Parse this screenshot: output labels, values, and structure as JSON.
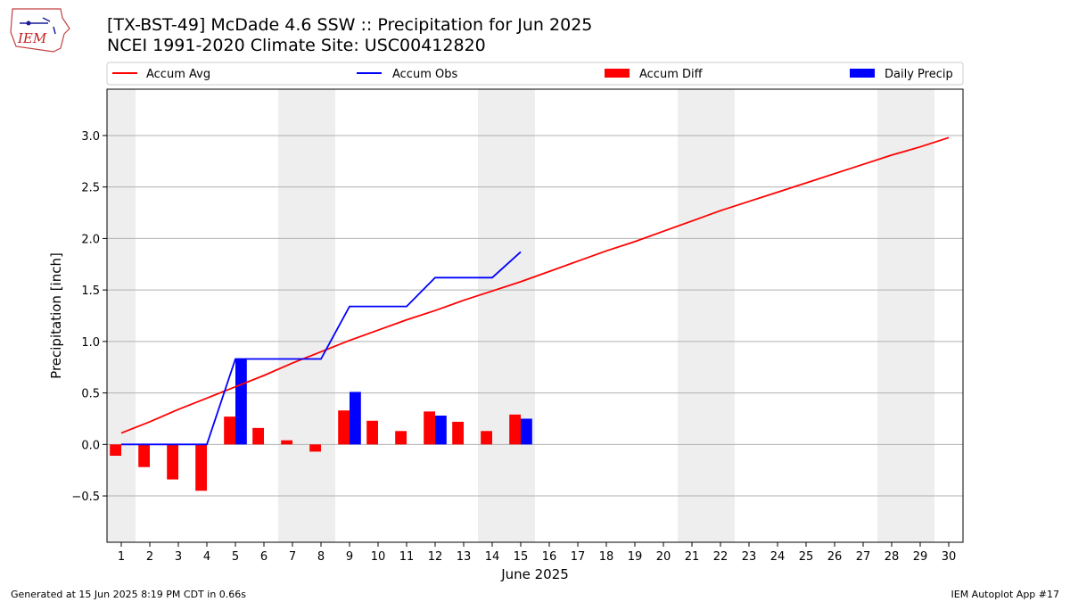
{
  "header": {
    "title_line1": "[TX-BST-49] McDade 4.6 SSW :: Precipitation for Jun 2025",
    "title_line2": "NCEI 1991-2020 Climate Site: USC00412820",
    "logo_text": "IEM"
  },
  "footer": {
    "left": "Generated at 15 Jun 2025 8:19 PM CDT in 0.66s",
    "right": "IEM Autoplot App #17"
  },
  "colors": {
    "avg": "#ff0000",
    "obs": "#0000ff",
    "diff": "#ff0000",
    "daily": "#0000ff",
    "weekend_shade": "#eeeeee",
    "grid": "#b0b0b0"
  },
  "chart_data": {
    "type": "bar+line",
    "xlabel": "June 2025",
    "ylabel": "Precipitation [inch]",
    "xlim": [
      0.5,
      30.5
    ],
    "ylim": [
      -0.95,
      3.45
    ],
    "yticks": [
      -0.5,
      0.0,
      0.5,
      1.0,
      1.5,
      2.0,
      2.5,
      3.0
    ],
    "ytick_labels": [
      "−0.5",
      "0.0",
      "0.5",
      "1.0",
      "1.5",
      "2.0",
      "2.5",
      "3.0"
    ],
    "days": [
      1,
      2,
      3,
      4,
      5,
      6,
      7,
      8,
      9,
      10,
      11,
      12,
      13,
      14,
      15,
      16,
      17,
      18,
      19,
      20,
      21,
      22,
      23,
      24,
      25,
      26,
      27,
      28,
      29,
      30
    ],
    "weekend_days": [
      1,
      7,
      8,
      14,
      15,
      21,
      22,
      28,
      29
    ],
    "grid": "y",
    "legend": {
      "placement": "top",
      "entries": [
        "Accum Avg",
        "Accum Obs",
        "Accum Diff",
        "Daily Precip"
      ]
    },
    "series": [
      {
        "name": "Accum Avg",
        "kind": "line",
        "x": [
          1,
          2,
          3,
          4,
          5,
          6,
          7,
          8,
          9,
          10,
          11,
          12,
          13,
          14,
          15,
          16,
          17,
          18,
          19,
          20,
          21,
          22,
          23,
          24,
          25,
          26,
          27,
          28,
          29,
          30
        ],
        "values": [
          0.11,
          0.22,
          0.34,
          0.45,
          0.56,
          0.67,
          0.79,
          0.9,
          1.01,
          1.11,
          1.21,
          1.3,
          1.4,
          1.49,
          1.58,
          1.68,
          1.78,
          1.88,
          1.97,
          2.07,
          2.17,
          2.27,
          2.36,
          2.45,
          2.54,
          2.63,
          2.72,
          2.81,
          2.89,
          2.98
        ]
      },
      {
        "name": "Accum Obs",
        "kind": "line",
        "x": [
          1,
          2,
          3,
          4,
          5,
          6,
          7,
          8,
          9,
          10,
          11,
          12,
          13,
          14,
          15
        ],
        "values": [
          0.0,
          0.0,
          0.0,
          0.0,
          0.83,
          0.83,
          0.83,
          0.83,
          1.34,
          1.34,
          1.34,
          1.62,
          1.62,
          1.62,
          1.87
        ]
      },
      {
        "name": "Accum Diff",
        "kind": "bar",
        "x": [
          1,
          2,
          3,
          4,
          5,
          6,
          7,
          8,
          9,
          10,
          11,
          12,
          13,
          14,
          15
        ],
        "values": [
          -0.11,
          -0.22,
          -0.34,
          -0.45,
          0.27,
          0.16,
          0.04,
          -0.07,
          0.33,
          0.23,
          0.13,
          0.32,
          0.22,
          0.13,
          0.29
        ]
      },
      {
        "name": "Daily Precip",
        "kind": "bar",
        "x": [
          5,
          9,
          12,
          15
        ],
        "values": [
          0.83,
          0.51,
          0.28,
          0.25
        ]
      }
    ]
  }
}
